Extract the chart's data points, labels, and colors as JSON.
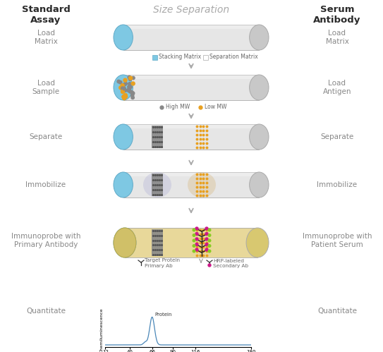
{
  "title": "Size Separation",
  "left_header": "Standard\nAssay",
  "right_header": "Serum\nAntibody",
  "left_labels": [
    "Load\nMatrix",
    "Load\nSample",
    "Separate",
    "Immobilize",
    "Immunoprobe with\nPrimary Antibody",
    "Quantitate"
  ],
  "right_labels": [
    "Load\nMatrix",
    "Load\nAntigen",
    "Separate",
    "Immobilize",
    "Immunoprobe with\nPatient Serum",
    "Quantitate"
  ],
  "bg_color": "#ffffff",
  "title_color": "#aaaaaa",
  "header_color": "#2a2a2a",
  "label_color": "#888888",
  "tube_body_color": "#e4e4e4",
  "tube_cap_color": "#7ec8e3",
  "gel_bg_color": "#e8d89a",
  "plot_line_color": "#4a87b8",
  "arrow_color": "#aaaaaa",
  "mw_ticks": [
    12,
    40,
    66,
    90,
    116,
    180
  ]
}
